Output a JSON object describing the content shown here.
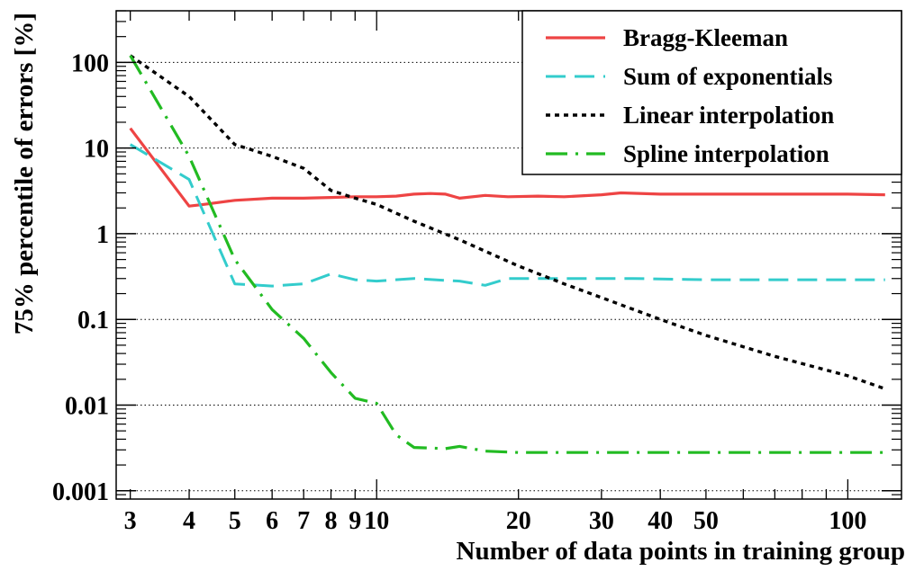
{
  "chart_data": {
    "type": "line",
    "title": "",
    "xlabel": "Number of data points in training group",
    "ylabel": "75% percentile of errors [%]",
    "x_scale": "log",
    "y_scale": "log",
    "xlim": [
      2.8,
      130
    ],
    "ylim": [
      0.0008,
      400
    ],
    "x_ticks": [
      3,
      4,
      5,
      6,
      7,
      8,
      9,
      10,
      20,
      30,
      40,
      50,
      100
    ],
    "x_tick_labels": [
      "3",
      "4",
      "5",
      "6",
      "7",
      "8",
      "9",
      "10",
      "20",
      "30",
      "40",
      "50",
      "100"
    ],
    "y_ticks": [
      0.001,
      0.01,
      0.1,
      1,
      10,
      100
    ],
    "y_tick_labels": [
      "0.001",
      "0.01",
      "0.1",
      "1",
      "10",
      "100"
    ],
    "grid": "horizontal dotted at decades",
    "legend_position": "top-right",
    "series": [
      {
        "name": "Bragg-Kleeman",
        "color": "#ee4444",
        "dash": "solid",
        "points": [
          [
            3,
            17
          ],
          [
            4,
            2.1
          ],
          [
            4.3,
            2.2
          ],
          [
            5,
            2.45
          ],
          [
            6,
            2.6
          ],
          [
            7,
            2.6
          ],
          [
            8,
            2.65
          ],
          [
            9,
            2.7
          ],
          [
            10,
            2.7
          ],
          [
            11,
            2.75
          ],
          [
            12,
            2.9
          ],
          [
            13,
            2.95
          ],
          [
            14,
            2.9
          ],
          [
            15,
            2.6
          ],
          [
            17,
            2.8
          ],
          [
            19,
            2.7
          ],
          [
            22,
            2.75
          ],
          [
            25,
            2.7
          ],
          [
            30,
            2.85
          ],
          [
            33,
            3.0
          ],
          [
            40,
            2.9
          ],
          [
            50,
            2.9
          ],
          [
            70,
            2.9
          ],
          [
            100,
            2.9
          ],
          [
            120,
            2.85
          ]
        ]
      },
      {
        "name": "Sum of exponentials",
        "color": "#33cccc",
        "dash": "long-dash",
        "points": [
          [
            3,
            11
          ],
          [
            4,
            4.3
          ],
          [
            5,
            0.26
          ],
          [
            6,
            0.245
          ],
          [
            7,
            0.26
          ],
          [
            8,
            0.34
          ],
          [
            9,
            0.29
          ],
          [
            10,
            0.28
          ],
          [
            12,
            0.3
          ],
          [
            14,
            0.285
          ],
          [
            15,
            0.28
          ],
          [
            17,
            0.25
          ],
          [
            19,
            0.3
          ],
          [
            25,
            0.3
          ],
          [
            35,
            0.3
          ],
          [
            50,
            0.29
          ],
          [
            70,
            0.29
          ],
          [
            100,
            0.29
          ],
          [
            120,
            0.29
          ]
        ]
      },
      {
        "name": "Linear interpolation",
        "color": "#000000",
        "dash": "dotted",
        "points": [
          [
            3,
            120
          ],
          [
            4,
            40
          ],
          [
            5,
            11
          ],
          [
            6,
            8
          ],
          [
            7,
            5.8
          ],
          [
            8,
            3.2
          ],
          [
            9,
            2.6
          ],
          [
            10,
            2.2
          ],
          [
            12,
            1.4
          ],
          [
            15,
            0.85
          ],
          [
            20,
            0.42
          ],
          [
            25,
            0.26
          ],
          [
            30,
            0.18
          ],
          [
            40,
            0.1
          ],
          [
            50,
            0.065
          ],
          [
            70,
            0.037
          ],
          [
            100,
            0.022
          ],
          [
            120,
            0.0155
          ]
        ]
      },
      {
        "name": "Spline interpolation",
        "color": "#22bb22",
        "dash": "dash-dot",
        "points": [
          [
            3,
            120
          ],
          [
            4,
            8
          ],
          [
            5,
            0.5
          ],
          [
            6,
            0.13
          ],
          [
            7,
            0.06
          ],
          [
            8,
            0.024
          ],
          [
            9,
            0.012
          ],
          [
            10,
            0.0105
          ],
          [
            11,
            0.0045
          ],
          [
            12,
            0.0032
          ],
          [
            14,
            0.0031
          ],
          [
            15,
            0.0033
          ],
          [
            17,
            0.0029
          ],
          [
            20,
            0.0028
          ],
          [
            30,
            0.0028
          ],
          [
            50,
            0.0028
          ],
          [
            100,
            0.0028
          ],
          [
            120,
            0.0028
          ]
        ]
      }
    ]
  }
}
